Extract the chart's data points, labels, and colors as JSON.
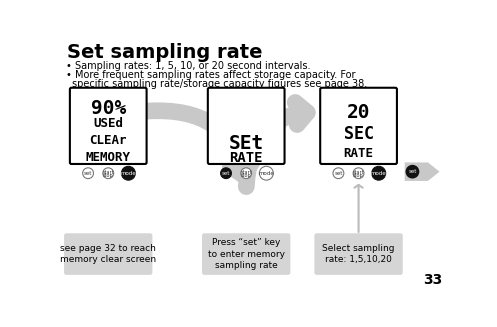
{
  "title": "Set sampling rate",
  "bullet1": "Sampling rates: 1, 5, 10, or 20 second intervals.",
  "bullet2": "More frequent sampling rates affect storage capacity. For",
  "bullet2b": "specific sampling rate/storage capacity figures see page 38.",
  "page_number": "33",
  "screen1_lines": [
    "90%",
    "USEd",
    "CLEAr",
    "MEMORY"
  ],
  "screen2_lines": [
    "",
    "",
    "SEt",
    "RATE"
  ],
  "screen3_lines": [
    "20",
    "SEC",
    "RATE"
  ],
  "caption1": "see page 32 to reach\nmemory clear screen",
  "caption2": "Press “set” key\nto enter memory\nsampling rate",
  "caption3": "Select sampling\nrate: 1,5,10,20",
  "bg_color": "#ffffff",
  "caption_bg": "#d5d5d5",
  "arrow_color": "#c8c8c8",
  "text_color": "#000000",
  "btn_outline_color": "#777777",
  "btn_dark_color": "#111111",
  "screen_font_size": 8,
  "screen1_font_sizes": [
    14,
    9,
    9,
    9
  ],
  "screen23_font_sizes": [
    14,
    12,
    9
  ]
}
